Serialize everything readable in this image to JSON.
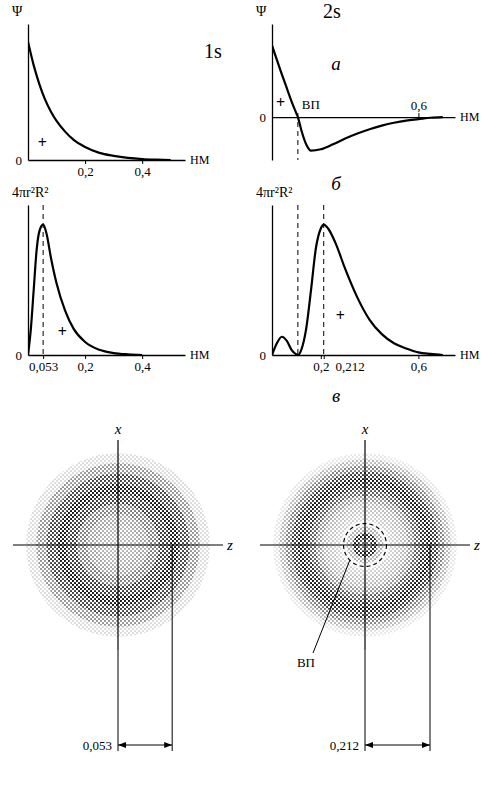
{
  "chart_data": [
    {
      "type": "line",
      "title": "1s",
      "xlabel": "НМ",
      "ylabel": "Ψ",
      "color": "#000000",
      "x": [
        0,
        0.02,
        0.04,
        0.06,
        0.08,
        0.1,
        0.13,
        0.16,
        0.2,
        0.25,
        0.3,
        0.35,
        0.4,
        0.45,
        0.5
      ],
      "values": [
        1,
        0.8,
        0.64,
        0.51,
        0.41,
        0.33,
        0.24,
        0.17,
        0.11,
        0.06,
        0.035,
        0.018,
        0.008,
        0.003,
        0
      ],
      "xlim": [
        0,
        0.55
      ],
      "ylim": [
        0,
        1.15
      ],
      "xticks": [
        {
          "value": 0.2,
          "label": "0,2"
        },
        {
          "value": 0.4,
          "label": "0,4"
        }
      ],
      "yticks": [
        0
      ],
      "annotations": [
        {
          "text": "+",
          "x": 0.05,
          "y": 0.15
        }
      ]
    },
    {
      "type": "line",
      "title": "2s",
      "panel_label": "а",
      "xlabel": "НМ",
      "ylabel": "Ψ",
      "color": "#000000",
      "x": [
        0,
        0.02,
        0.04,
        0.06,
        0.08,
        0.1,
        0.106,
        0.12,
        0.14,
        0.16,
        0.2,
        0.25,
        0.3,
        0.35,
        0.4,
        0.45,
        0.5,
        0.55,
        0.6,
        0.65,
        0.7
      ],
      "values": [
        1,
        0.8,
        0.6,
        0.41,
        0.22,
        0.05,
        0,
        -0.18,
        -0.38,
        -0.47,
        -0.45,
        -0.38,
        -0.3,
        -0.23,
        -0.17,
        -0.12,
        -0.08,
        -0.05,
        -0.03,
        -0.01,
        0
      ],
      "xlim": [
        0,
        0.75
      ],
      "ylim": [
        -0.6,
        1.3
      ],
      "xticks": [
        {
          "value": 0.6,
          "label": "0,6"
        }
      ],
      "yticks": [
        0
      ],
      "node": {
        "value": 0.106,
        "label": "ВП"
      },
      "annotations": [
        {
          "text": "+",
          "x": 0.035,
          "y": 0.2
        }
      ]
    },
    {
      "type": "line",
      "xlabel": "НМ",
      "ylabel": "4πr²R²",
      "color": "#000000",
      "x": [
        0,
        0.01,
        0.02,
        0.03,
        0.04,
        0.053,
        0.065,
        0.08,
        0.1,
        0.13,
        0.16,
        0.2,
        0.25,
        0.3,
        0.35,
        0.4
      ],
      "values": [
        0,
        0.2,
        0.5,
        0.8,
        0.95,
        1,
        0.93,
        0.75,
        0.55,
        0.34,
        0.2,
        0.1,
        0.04,
        0.015,
        0.005,
        0
      ],
      "xlim": [
        0,
        0.55
      ],
      "ylim": [
        0,
        1.15
      ],
      "xticks": [
        {
          "value": 0.053,
          "label": "0,053"
        },
        {
          "value": 0.2,
          "label": "0,2"
        },
        {
          "value": 0.4,
          "label": "0,4"
        }
      ],
      "yticks": [
        0
      ],
      "guides": [
        0.053
      ],
      "annotations": [
        {
          "text": "+",
          "x": 0.12,
          "y": 0.18
        }
      ]
    },
    {
      "type": "line",
      "panel_label": "б",
      "xlabel": "НМ",
      "ylabel": "4πr²R²",
      "color": "#000000",
      "x": [
        0,
        0.02,
        0.04,
        0.06,
        0.08,
        0.1,
        0.106,
        0.12,
        0.14,
        0.16,
        0.18,
        0.2,
        0.212,
        0.23,
        0.26,
        0.3,
        0.35,
        0.4,
        0.45,
        0.5,
        0.55,
        0.6,
        0.65,
        0.7
      ],
      "values": [
        0,
        0.09,
        0.14,
        0.11,
        0.04,
        0.005,
        0,
        0.04,
        0.2,
        0.5,
        0.82,
        0.97,
        1,
        0.97,
        0.86,
        0.66,
        0.44,
        0.27,
        0.16,
        0.09,
        0.05,
        0.02,
        0.008,
        0
      ],
      "xlim": [
        0,
        0.75
      ],
      "ylim": [
        0,
        1.15
      ],
      "xticks": [
        {
          "value": 0.2,
          "label": "0,2"
        },
        {
          "value": 0.212,
          "label": "0,212"
        },
        {
          "value": 0.6,
          "label": "0,6"
        }
      ],
      "yticks": [
        0
      ],
      "guides": [
        0.106,
        0.212
      ],
      "annotations": [
        {
          "text": "+",
          "x": 0.28,
          "y": 0.3
        }
      ]
    },
    {
      "type": "cloud",
      "xlabel": "z",
      "ylabel": "x",
      "color": "#000000",
      "r": [
        0.005,
        0.015,
        0.025,
        0.035,
        0.045,
        0.055,
        0.065,
        0.075,
        0.085
      ],
      "values": [
        0.3,
        0.32,
        0.38,
        0.55,
        0.85,
        1,
        0.8,
        0.45,
        0.15
      ],
      "rlim": [
        0,
        0.09
      ],
      "dimension": {
        "value": 0.053,
        "label": "0,053"
      }
    },
    {
      "type": "cloud",
      "panel_label": "в",
      "xlabel": "z",
      "ylabel": "x",
      "color": "#000000",
      "r": [
        0.01,
        0.03,
        0.05,
        0.07,
        0.09,
        0.11,
        0.13,
        0.15,
        0.17,
        0.19,
        0.21,
        0.23,
        0.25,
        0.27,
        0.29
      ],
      "values": [
        0.7,
        0.95,
        0.35,
        0.05,
        0.2,
        0.25,
        0.3,
        0.45,
        0.7,
        0.9,
        1,
        0.85,
        0.55,
        0.3,
        0.1
      ],
      "rlim": [
        0,
        0.3
      ],
      "node": {
        "value": 0.07,
        "label": "ВП"
      },
      "dimension": {
        "value": 0.212,
        "label": "0,212"
      }
    }
  ]
}
